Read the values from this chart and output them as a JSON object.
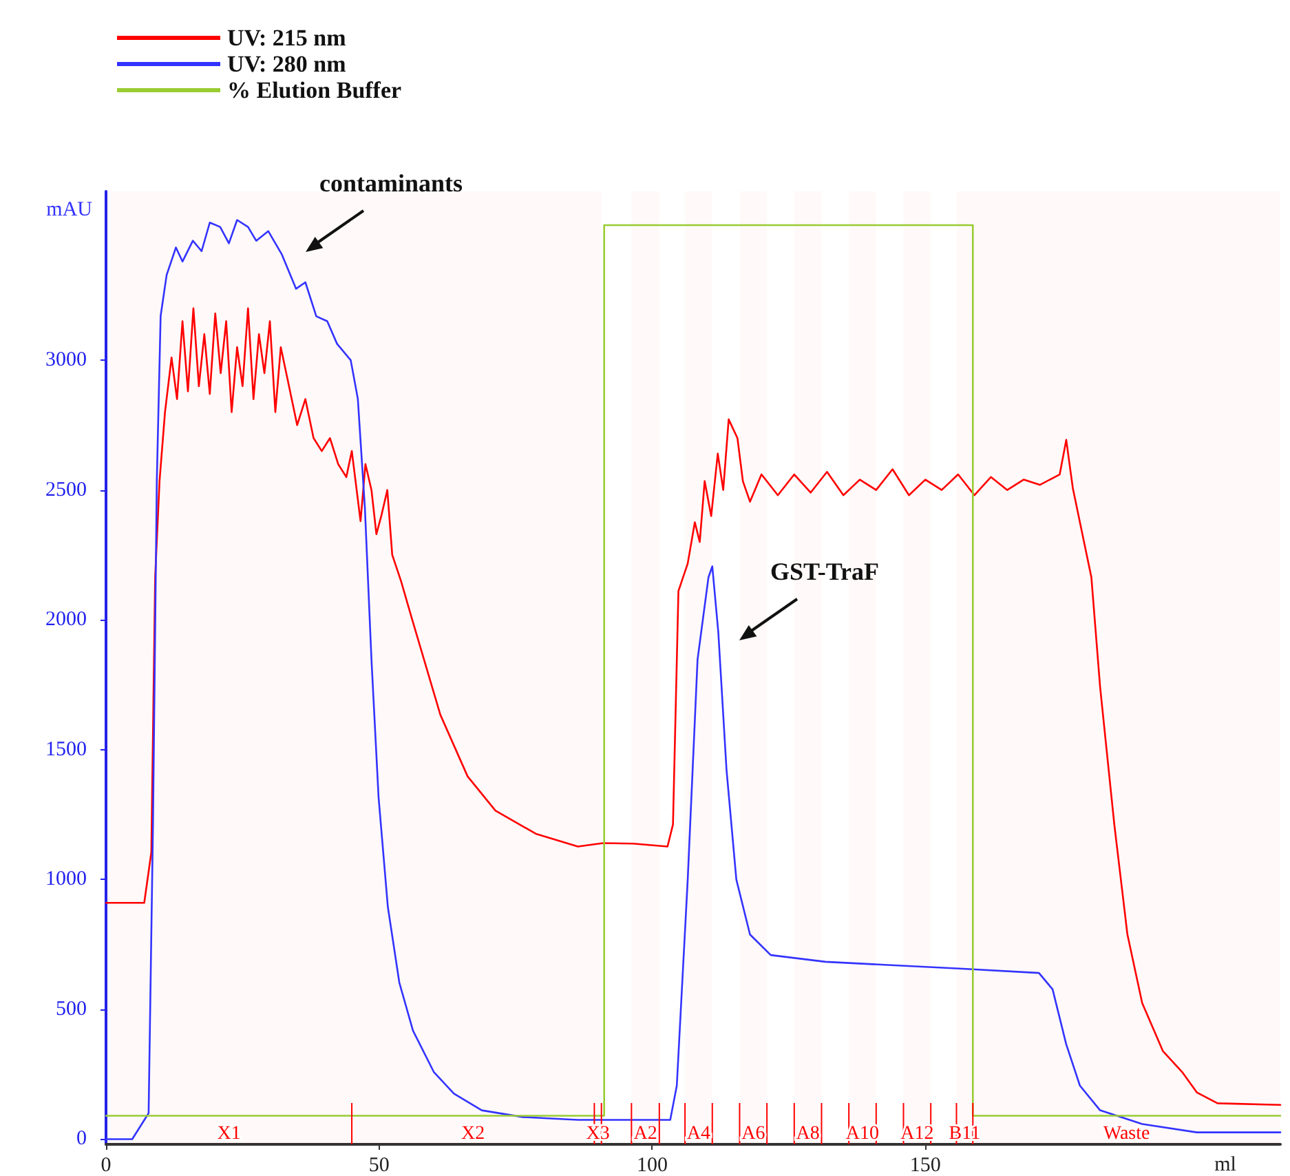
{
  "chart_data": {
    "type": "line",
    "xlabel": "ml",
    "ylabel": "mAU",
    "xlim": [
      0,
      215
    ],
    "xticks": [
      0,
      50,
      100,
      150
    ],
    "ylim": [
      -20,
      3650
    ],
    "yticks": [
      0,
      500,
      1000,
      1500,
      2000,
      2500,
      3000
    ],
    "grid": false,
    "legend": "top left",
    "marker": "none",
    "line_style": "solid",
    "series": [
      {
        "name": "UV: 215 nm",
        "color": "#ff0000",
        "x": [
          0,
          7,
          8.3,
          9,
          9.8,
          10.8,
          12,
          13,
          14,
          15,
          16,
          17,
          18,
          19,
          20,
          21,
          22,
          23,
          24,
          25,
          26,
          27,
          28,
          29,
          30,
          31,
          32,
          33.5,
          35,
          36.5,
          38,
          39.5,
          41,
          42.5,
          44,
          45,
          46.6,
          47.5,
          48.6,
          49.5,
          50.4,
          51.5,
          52.4,
          54,
          56,
          61.2,
          66.2,
          71.3,
          78.8,
          86.4,
          91,
          96.5,
          102.8,
          103.8,
          104.8,
          106.5,
          107.8,
          108.7,
          109.6,
          110.8,
          112,
          113,
          114,
          115.6,
          116.6,
          117.9,
          120,
          123,
          126,
          129,
          132,
          135,
          138,
          141,
          144,
          147,
          150,
          153,
          156,
          159,
          162,
          165,
          168,
          171,
          174.6,
          175.8,
          177,
          178.3,
          180.4,
          182,
          184.6,
          187,
          189.7,
          193.5,
          197,
          199.7,
          203.5,
          215
        ],
        "values": [
          910,
          910,
          1105,
          2165,
          2535,
          2800,
          3010,
          2850,
          3150,
          2880,
          3200,
          2900,
          3100,
          2870,
          3180,
          2950,
          3150,
          2800,
          3050,
          2900,
          3200,
          2850,
          3100,
          2950,
          3150,
          2800,
          3050,
          2900,
          2750,
          2850,
          2700,
          2650,
          2700,
          2600,
          2550,
          2650,
          2380,
          2600,
          2500,
          2330,
          2400,
          2500,
          2250,
          2150,
          2005,
          1635,
          1397,
          1265,
          1175,
          1127,
          1140,
          1138,
          1127,
          1212,
          2111,
          2217,
          2376,
          2300,
          2534,
          2400,
          2640,
          2500,
          2772,
          2700,
          2534,
          2455,
          2560,
          2480,
          2560,
          2490,
          2570,
          2480,
          2540,
          2500,
          2580,
          2480,
          2540,
          2500,
          2560,
          2480,
          2550,
          2500,
          2540,
          2520,
          2560,
          2693,
          2508,
          2376,
          2164,
          1741,
          1212,
          788,
          524,
          339,
          259,
          180,
          138,
          132
        ]
      },
      {
        "name": "UV: 280 nm",
        "color": "#3333ff",
        "x": [
          0,
          4.8,
          7.8,
          8.6,
          9.3,
          10,
          11.1,
          12.8,
          14,
          15.9,
          17.5,
          19,
          20.9,
          22.5,
          24,
          26,
          27.5,
          29.7,
          32.2,
          34.8,
          36.5,
          38.5,
          40.5,
          42.3,
          44.8,
          46.1,
          47.4,
          48.6,
          49.9,
          51.6,
          53.7,
          56.2,
          60,
          63.7,
          68.8,
          76.3,
          86.4,
          103.3,
          104.5,
          106.5,
          108.3,
          110.3,
          111,
          112.1,
          113.6,
          115.4,
          117.9,
          121.7,
          131.7,
          156.9,
          170.8,
          173.3,
          175.8,
          178.3,
          182,
          189.7,
          199.7,
          215
        ],
        "values": [
          0,
          0,
          100,
          1212,
          2534,
          3170,
          3328,
          3434,
          3380,
          3460,
          3420,
          3530,
          3513,
          3450,
          3540,
          3513,
          3460,
          3497,
          3407,
          3275,
          3300,
          3169,
          3150,
          3063,
          3000,
          2852,
          2429,
          1847,
          1317,
          894,
          603,
          418,
          259,
          175,
          111,
          85,
          74,
          74,
          206,
          1000,
          1847,
          2164,
          2206,
          1952,
          1423,
          1000,
          788,
          709,
          683,
          656,
          640,
          577,
          365,
          206,
          111,
          58,
          26,
          26
        ]
      },
      {
        "name": "% Elution Buffer",
        "color": "#99cc33",
        "x": [
          0,
          91.2,
          91.2,
          158.7,
          158.7,
          215
        ],
        "values": [
          90,
          90,
          3520,
          3520,
          90,
          90
        ]
      }
    ],
    "bands": [
      {
        "axis": "x",
        "from": 0,
        "to": 45,
        "label": "X1",
        "color": "#ff0000"
      },
      {
        "axis": "x",
        "from": 45,
        "to": 89.4,
        "label": "X2",
        "color": "#ff0000"
      },
      {
        "axis": "x",
        "from": 89.4,
        "to": 90.7,
        "label": "X3",
        "color": "#ff0000"
      },
      {
        "axis": "x",
        "from": 96.2,
        "to": 101.3,
        "label": "A2",
        "color": "#ff0000"
      },
      {
        "axis": "x",
        "from": 106,
        "to": 111,
        "label": "A4",
        "color": "#ff0000"
      },
      {
        "axis": "x",
        "from": 116,
        "to": 121,
        "label": "A6",
        "color": "#ff0000"
      },
      {
        "axis": "x",
        "from": 126,
        "to": 131,
        "label": "A8",
        "color": "#ff0000"
      },
      {
        "axis": "x",
        "from": 136,
        "to": 141,
        "label": "A10",
        "color": "#ff0000"
      },
      {
        "axis": "x",
        "from": 146,
        "to": 151,
        "label": "A12",
        "color": "#ff0000"
      },
      {
        "axis": "x",
        "from": 155.7,
        "to": 158.7,
        "label": "B11",
        "color": "#ff0000"
      },
      {
        "axis": "x",
        "from": 158.7,
        "to": 215,
        "label": "Waste",
        "color": "#ff0000"
      }
    ],
    "annotations": [
      "contaminants",
      "GST-TraF"
    ]
  }
}
